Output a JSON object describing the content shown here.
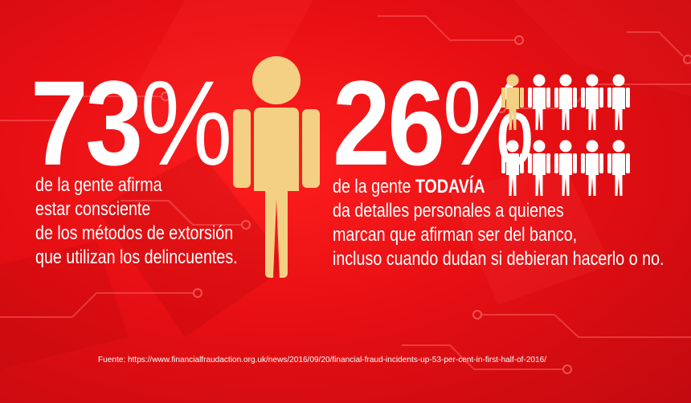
{
  "colors": {
    "background": "#e70f13",
    "text": "#ffffff",
    "figure_highlight": "#f4d084",
    "figure_plain": "#ffffff"
  },
  "stat_left": {
    "number": "73",
    "percent_sign": "%",
    "caption_lines": [
      "de la gente afirma",
      "estar consciente",
      "de los métodos de extorsión",
      "que utilizan los delincuentes."
    ]
  },
  "stat_right": {
    "number": "26",
    "percent_sign": "%",
    "caption_first_line_prefix": "de la gente ",
    "caption_first_line_emphasis": "TODAVÍA",
    "caption_lines": [
      "da detalles personales a quienes",
      "marcan que afirman ser del banco,",
      "incluso cuando dudan si debieran hacerlo o no."
    ]
  },
  "people_grid": {
    "rows": 2,
    "columns": 5,
    "highlighted_fraction": 0.26
  },
  "source": {
    "text": "Fuente: https://www.financialfraudaction.org.uk/news/2016/09/20/financial-fraud-incidents-up-53-per-cent-in-first-half-of-2016/"
  }
}
